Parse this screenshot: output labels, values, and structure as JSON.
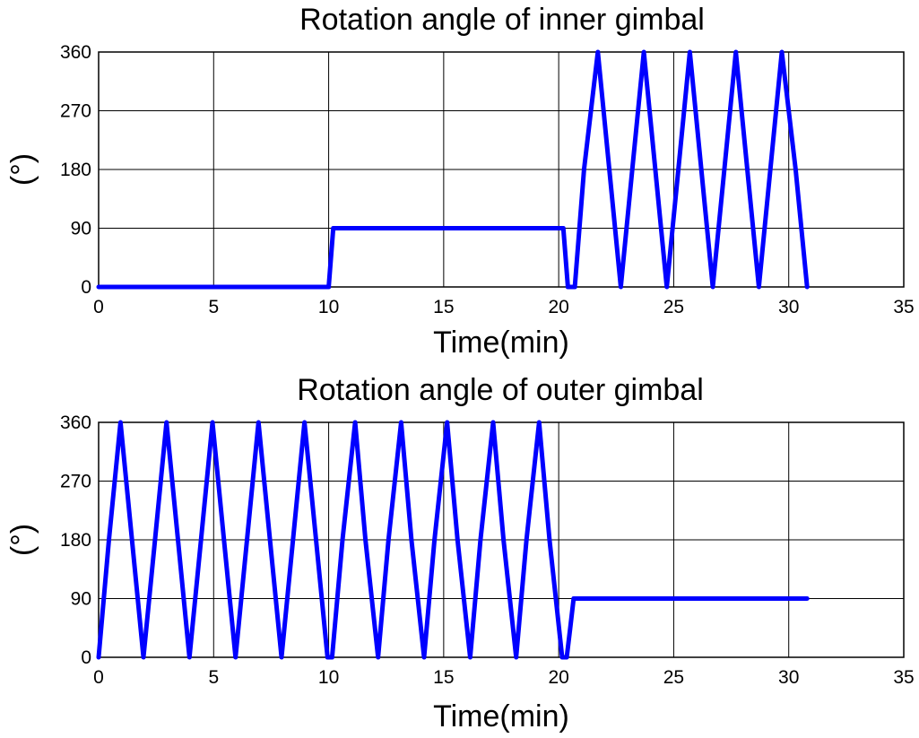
{
  "chart_data": [
    {
      "type": "line",
      "title": "Rotation angle of inner gimbal",
      "xlabel": "Time(min)",
      "ylabel": "(°)",
      "xlim": [
        0,
        35
      ],
      "ylim": [
        0,
        360
      ],
      "xticks": [
        "0",
        "5",
        "10",
        "15",
        "20",
        "25",
        "30",
        "35"
      ],
      "yticks": [
        "0",
        "90",
        "180",
        "270",
        "360"
      ],
      "grid": true,
      "series": [
        {
          "color": "#0000ff",
          "x": [
            0,
            10,
            10.2,
            20.2,
            20.4,
            20.7,
            21.1,
            21.7,
            22.2,
            22.7,
            23.2,
            23.7,
            24.2,
            24.7,
            25.2,
            25.7,
            26.2,
            26.7,
            27.2,
            27.7,
            28.2,
            28.7,
            29.2,
            29.7,
            30.3,
            30.8
          ],
          "y": [
            0,
            0,
            90,
            90,
            0,
            0,
            180,
            360,
            180,
            0,
            180,
            360,
            180,
            0,
            180,
            360,
            180,
            0,
            180,
            360,
            180,
            0,
            180,
            360,
            180,
            0
          ]
        }
      ]
    },
    {
      "type": "line",
      "title": "Rotation angle of outer gimbal",
      "xlabel": "Time(min)",
      "ylabel": "(°)",
      "xlim": [
        0,
        35
      ],
      "ylim": [
        0,
        360
      ],
      "xticks": [
        "0",
        "5",
        "10",
        "15",
        "20",
        "25",
        "30",
        "35"
      ],
      "yticks": [
        "0",
        "90",
        "180",
        "270",
        "360"
      ],
      "grid": true,
      "series": [
        {
          "color": "#0000ff",
          "x": [
            0,
            0.45,
            0.95,
            1.45,
            1.95,
            2.45,
            2.95,
            3.45,
            3.95,
            4.45,
            4.95,
            5.45,
            5.95,
            6.45,
            6.95,
            7.45,
            7.95,
            8.45,
            8.95,
            9.45,
            9.95,
            10.15,
            10.6,
            11.15,
            11.6,
            12.15,
            12.6,
            13.15,
            13.6,
            14.15,
            14.6,
            15.15,
            15.6,
            16.15,
            16.6,
            17.15,
            17.6,
            18.15,
            18.6,
            19.15,
            19.6,
            20.15,
            20.35,
            20.5,
            20.65,
            30.8
          ],
          "y": [
            0,
            180,
            360,
            180,
            0,
            180,
            360,
            180,
            0,
            180,
            360,
            180,
            0,
            180,
            360,
            180,
            0,
            180,
            360,
            180,
            0,
            0,
            180,
            360,
            180,
            0,
            180,
            360,
            180,
            0,
            180,
            360,
            180,
            0,
            180,
            360,
            180,
            0,
            180,
            360,
            180,
            0,
            0,
            45,
            90,
            90
          ]
        }
      ]
    }
  ]
}
